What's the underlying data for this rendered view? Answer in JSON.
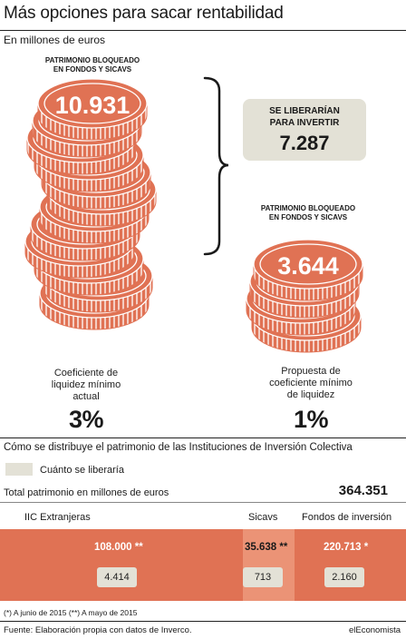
{
  "header": {
    "title": "Más opciones para sacar rentabilidad",
    "subtitle": "En millones de euros"
  },
  "colors": {
    "coin": "#e07254",
    "coin_dark": "#b8472c",
    "highlight": "#e3e1d6",
    "sicav_band": "#eb9376"
  },
  "chart_data": [
    {
      "type": "bar",
      "categories": [
        "Coeficiente de liquidez mínimo actual",
        "Propuesta de coeficiente mínimo de liquidez"
      ],
      "values": [
        10931,
        3644
      ],
      "coefficients": [
        "3%",
        "1%"
      ],
      "released": 7287,
      "title": "Más opciones para sacar rentabilidad",
      "ylabel": "En millones de euros"
    },
    {
      "type": "table",
      "title": "Cómo se distribuye el patrimonio de las Instituciones de Inversión Colectiva",
      "total": 364351,
      "categories": [
        "IIC Extranjeras",
        "Sicavs",
        "Fondos de inversión"
      ],
      "series": [
        {
          "name": "Total patrimonio en millones de euros",
          "values": [
            108000,
            35638,
            220713
          ]
        },
        {
          "name": "Cuánto se liberaría",
          "values": [
            4414,
            713,
            2160
          ]
        }
      ]
    }
  ],
  "coins": {
    "left": {
      "label": "PATRIMONIO BLOQUEADO\nEN FONDOS Y SICAVS",
      "value": "10.931",
      "caption_1": "Coeficiente de",
      "caption_2": "liquidez mínimo",
      "caption_3": "actual",
      "pct": "3%"
    },
    "right": {
      "label": "PATRIMONIO BLOQUEADO\nEN FONDOS Y SICAVS",
      "value": "3.644",
      "caption_1": "Propuesta de",
      "caption_2": "coeficiente mínimo",
      "caption_3": "de liquidez",
      "pct": "1%"
    }
  },
  "release": {
    "label_1": "SE LIBERARÍAN",
    "label_2": "PARA INVERTIR",
    "value": "7.287"
  },
  "distribution": {
    "title": "Cómo se distribuye el patrimonio de las Instituciones de Inversión Colectiva",
    "legend": "Cuánto se liberaría",
    "total_label": "Total patrimonio en millones de euros",
    "total_value": "364.351",
    "columns": [
      {
        "head": "IIC Extranjeras",
        "value": "108.000 **",
        "released": "4.414"
      },
      {
        "head": "Sicavs",
        "value": "35.638 **",
        "released": "713"
      },
      {
        "head": "Fondos de inversión",
        "value": "220.713 *",
        "released": "2.160"
      }
    ]
  },
  "footer": {
    "note": "(*) A junio de 2015 (**) A mayo de 2015",
    "source": "Fuente: Elaboración propia con datos de Inverco.",
    "brand": "elEconomista"
  }
}
